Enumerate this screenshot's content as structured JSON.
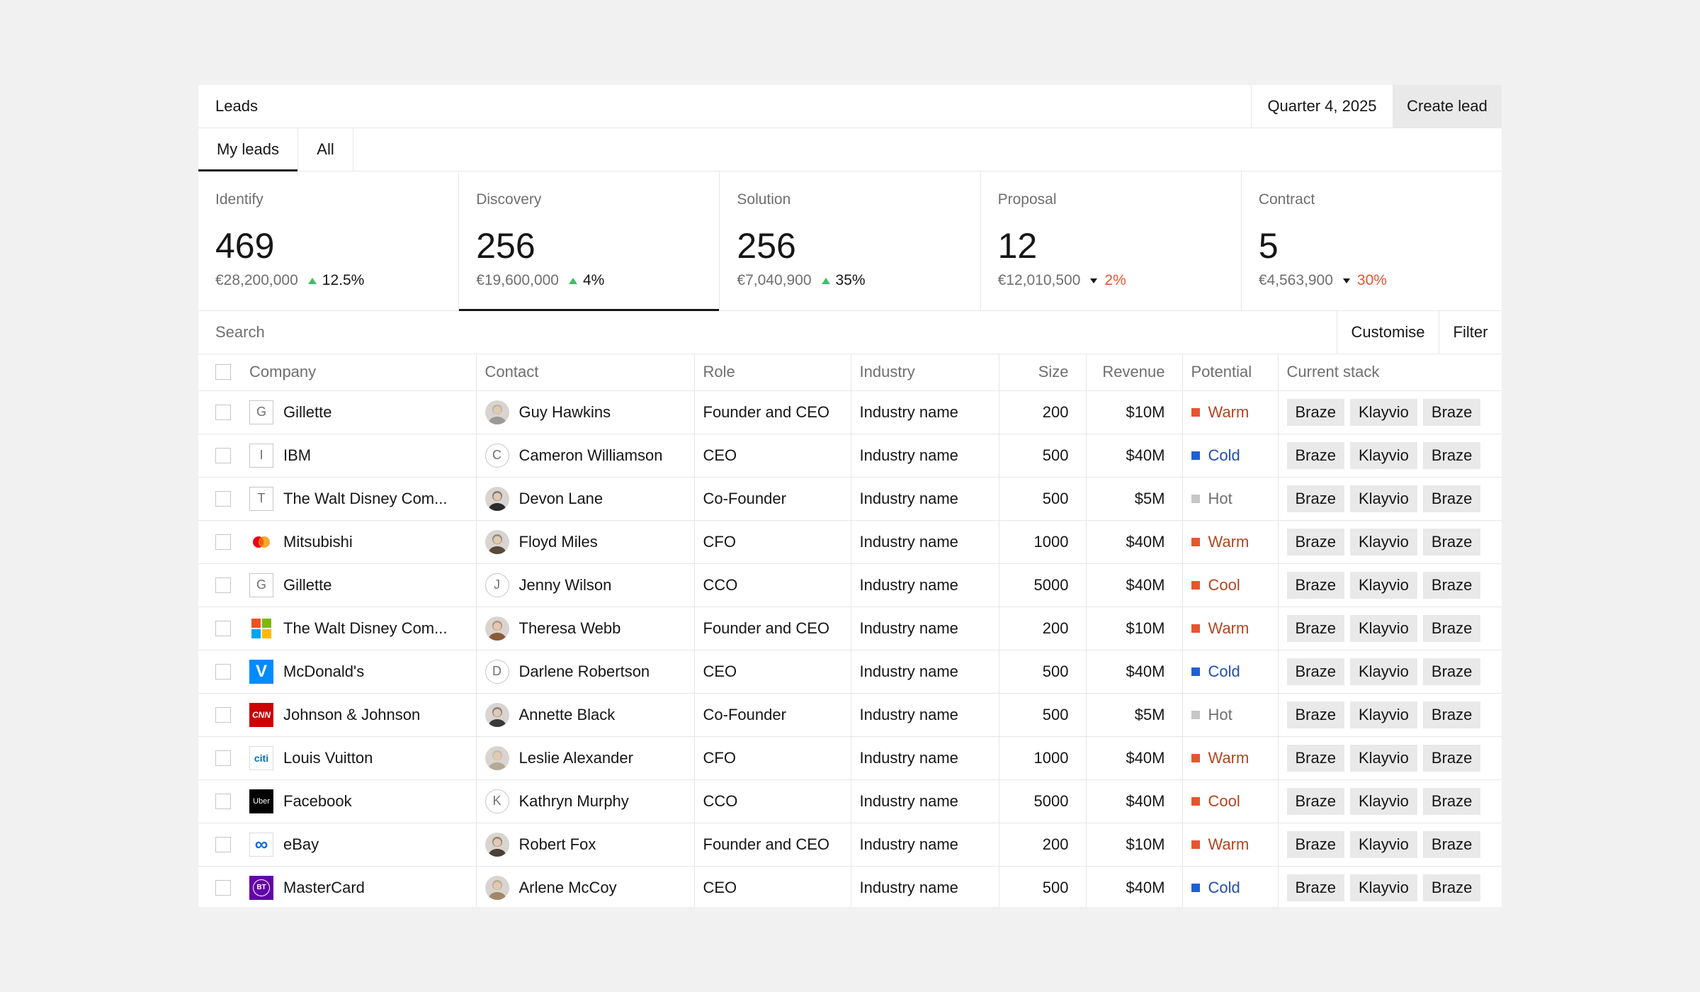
{
  "header": {
    "title": "Leads",
    "quarter": "Quarter 4, 2025",
    "create_label": "Create lead"
  },
  "tabs": [
    {
      "label": "My leads",
      "active": true
    },
    {
      "label": "All",
      "active": false
    }
  ],
  "stages": [
    {
      "label": "Identify",
      "count": "469",
      "amount": "€28,200,000",
      "change": "12.5%",
      "direction": "up"
    },
    {
      "label": "Discovery",
      "count": "256",
      "amount": "€19,600,000",
      "change": "4%",
      "direction": "up"
    },
    {
      "label": "Solution",
      "count": "256",
      "amount": "€7,040,900",
      "change": "35%",
      "direction": "up"
    },
    {
      "label": "Proposal",
      "count": "12",
      "amount": "€12,010,500",
      "change": "2%",
      "direction": "down"
    },
    {
      "label": "Contract",
      "count": "5",
      "amount": "€4,563,900",
      "change": "30%",
      "direction": "down"
    }
  ],
  "toolbar": {
    "search_placeholder": "Search",
    "customise_label": "Customise",
    "filter_label": "Filter"
  },
  "colors": {
    "up": "#42be65",
    "down": "#e8542f",
    "warm": "#e8542f",
    "cold": "#1f5fd6",
    "hot": "#c6c6c6",
    "cool": "#e8542f"
  },
  "table": {
    "columns": [
      "Company",
      "Contact",
      "Role",
      "Industry",
      "Size",
      "Revenue",
      "Potential",
      "Current stack"
    ],
    "rows": [
      {
        "company": "Gillette",
        "logo": "letter-g",
        "logo_text": "G",
        "contact": "Guy Hawkins",
        "avatar": "photo",
        "avatar_color": "#9a9a9a",
        "role": "Founder and CEO",
        "industry": "Industry name",
        "size": "200",
        "revenue": "$10M",
        "potential": "Warm",
        "potential_color": "#e8542f",
        "potential_text_color": "#b5441f",
        "stack": [
          "Braze",
          "Klayvio",
          "Braze"
        ]
      },
      {
        "company": "IBM",
        "logo": "letter-i",
        "logo_text": "I",
        "contact": "Cameron Williamson",
        "avatar": "letter",
        "avatar_text": "C",
        "role": "CEO",
        "industry": "Industry name",
        "size": "500",
        "revenue": "$40M",
        "potential": "Cold",
        "potential_color": "#1f5fd6",
        "potential_text_color": "#1f4fb3",
        "stack": [
          "Braze",
          "Klayvio",
          "Braze"
        ]
      },
      {
        "company": "The Walt Disney Com...",
        "logo": "letter-t",
        "logo_text": "T",
        "contact": "Devon Lane",
        "avatar": "photo",
        "avatar_color": "#2b2b2b",
        "role": "Co-Founder",
        "industry": "Industry name",
        "size": "500",
        "revenue": "$5M",
        "potential": "Hot",
        "potential_color": "#c6c6c6",
        "potential_text_color": "#6f6f6f",
        "stack": [
          "Braze",
          "Klayvio",
          "Braze"
        ]
      },
      {
        "company": "Mitsubishi",
        "logo": "mastercard-logo",
        "contact": "Floyd Miles",
        "avatar": "photo",
        "avatar_color": "#5a4a3a",
        "role": "CFO",
        "industry": "Industry name",
        "size": "1000",
        "revenue": "$40M",
        "potential": "Warm",
        "potential_color": "#e8542f",
        "potential_text_color": "#b5441f",
        "stack": [
          "Braze",
          "Klayvio",
          "Braze"
        ]
      },
      {
        "company": "Gillette",
        "logo": "letter-g",
        "logo_text": "G",
        "contact": "Jenny Wilson",
        "avatar": "letter",
        "avatar_text": "J",
        "role": "CCO",
        "industry": "Industry name",
        "size": "5000",
        "revenue": "$40M",
        "potential": "Cool",
        "potential_color": "#e8542f",
        "potential_text_color": "#b5441f",
        "stack": [
          "Braze",
          "Klayvio",
          "Braze"
        ]
      },
      {
        "company": "The Walt Disney Com...",
        "logo": "microsoft-logo",
        "contact": "Theresa Webb",
        "avatar": "photo",
        "avatar_color": "#8a5a3a",
        "role": "Founder and CEO",
        "industry": "Industry name",
        "size": "200",
        "revenue": "$10M",
        "potential": "Warm",
        "potential_color": "#e8542f",
        "potential_text_color": "#b5441f",
        "stack": [
          "Braze",
          "Klayvio",
          "Braze"
        ]
      },
      {
        "company": "McDonald's",
        "logo": "venmo-logo",
        "logo_text": "V",
        "contact": "Darlene Robertson",
        "avatar": "letter",
        "avatar_text": "D",
        "role": "CEO",
        "industry": "Industry name",
        "size": "500",
        "revenue": "$40M",
        "potential": "Cold",
        "potential_color": "#1f5fd6",
        "potential_text_color": "#1f4fb3",
        "stack": [
          "Braze",
          "Klayvio",
          "Braze"
        ]
      },
      {
        "company": "Johnson & Johnson",
        "logo": "cnn-logo",
        "logo_text": "CNN",
        "contact": "Annette Black",
        "avatar": "photo",
        "avatar_color": "#3a3a3a",
        "role": "Co-Founder",
        "industry": "Industry name",
        "size": "500",
        "revenue": "$5M",
        "potential": "Hot",
        "potential_color": "#c6c6c6",
        "potential_text_color": "#6f6f6f",
        "stack": [
          "Braze",
          "Klayvio",
          "Braze"
        ]
      },
      {
        "company": "Louis Vuitton",
        "logo": "citi-logo",
        "logo_text": "citi",
        "contact": "Leslie Alexander",
        "avatar": "photo",
        "avatar_color": "#b8a898",
        "role": "CFO",
        "industry": "Industry name",
        "size": "1000",
        "revenue": "$40M",
        "potential": "Warm",
        "potential_color": "#e8542f",
        "potential_text_color": "#b5441f",
        "stack": [
          "Braze",
          "Klayvio",
          "Braze"
        ]
      },
      {
        "company": "Facebook",
        "logo": "uber-logo",
        "logo_text": "Uber",
        "contact": "Kathryn Murphy",
        "avatar": "letter",
        "avatar_text": "K",
        "role": "CCO",
        "industry": "Industry name",
        "size": "5000",
        "revenue": "$40M",
        "potential": "Cool",
        "potential_color": "#e8542f",
        "potential_text_color": "#b5441f",
        "stack": [
          "Braze",
          "Klayvio",
          "Braze"
        ]
      },
      {
        "company": "eBay",
        "logo": "meta-logo",
        "logo_text": "∞",
        "contact": "Robert Fox",
        "avatar": "photo",
        "avatar_color": "#4a4038",
        "role": "Founder and CEO",
        "industry": "Industry name",
        "size": "200",
        "revenue": "$10M",
        "potential": "Warm",
        "potential_color": "#e8542f",
        "potential_text_color": "#b5441f",
        "stack": [
          "Braze",
          "Klayvio",
          "Braze"
        ]
      },
      {
        "company": "MasterCard",
        "logo": "bt-logo",
        "logo_text": "BT",
        "contact": "Arlene McCoy",
        "avatar": "photo",
        "avatar_color": "#a08868",
        "role": "CEO",
        "industry": "Industry name",
        "size": "500",
        "revenue": "$40M",
        "potential": "Cold",
        "potential_color": "#1f5fd6",
        "potential_text_color": "#1f4fb3",
        "stack": [
          "Braze",
          "Klayvio",
          "Braze"
        ]
      }
    ]
  }
}
